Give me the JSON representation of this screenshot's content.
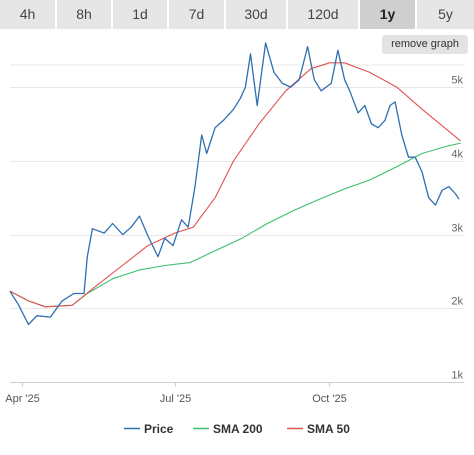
{
  "tabs": [
    {
      "label": "4h",
      "active": false
    },
    {
      "label": "8h",
      "active": false
    },
    {
      "label": "1d",
      "active": false
    },
    {
      "label": "7d",
      "active": false
    },
    {
      "label": "30d",
      "active": false
    },
    {
      "label": "120d",
      "active": false
    },
    {
      "label": "1y",
      "active": true
    },
    {
      "label": "5y",
      "active": false
    }
  ],
  "toolbar": {
    "remove_graph_label": "remove graph"
  },
  "chart_data": {
    "type": "line",
    "title": "",
    "xlabel": "",
    "ylabel": "",
    "x_ticks": [
      "Apr '25",
      "Jul '25",
      "Oct '25"
    ],
    "y_ticks": [
      "1k",
      "2k",
      "3k",
      "4k",
      "5k"
    ],
    "y_tick_values": [
      1000,
      2000,
      3000,
      4000,
      5000
    ],
    "ylim": [
      1000,
      5300
    ],
    "xlim": [
      "2025-03-25",
      "2025-12-20"
    ],
    "grid": true,
    "legend_position": "bottom",
    "series": [
      {
        "name": "Price",
        "color": "#2f6fb0",
        "points": [
          [
            "2025-03-25",
            2230
          ],
          [
            "2025-03-30",
            2050
          ],
          [
            "2025-04-05",
            1780
          ],
          [
            "2025-04-10",
            1900
          ],
          [
            "2025-04-18",
            1880
          ],
          [
            "2025-04-25",
            2100
          ],
          [
            "2025-05-02",
            2200
          ],
          [
            "2025-05-08",
            2200
          ],
          [
            "2025-05-10",
            2700
          ],
          [
            "2025-05-13",
            3080
          ],
          [
            "2025-05-20",
            3020
          ],
          [
            "2025-05-25",
            3150
          ],
          [
            "2025-05-31",
            3000
          ],
          [
            "2025-06-05",
            3100
          ],
          [
            "2025-06-10",
            3250
          ],
          [
            "2025-06-15",
            2980
          ],
          [
            "2025-06-21",
            2700
          ],
          [
            "2025-06-25",
            2950
          ],
          [
            "2025-06-30",
            2850
          ],
          [
            "2025-07-05",
            3200
          ],
          [
            "2025-07-09",
            3100
          ],
          [
            "2025-07-13",
            3650
          ],
          [
            "2025-07-17",
            4350
          ],
          [
            "2025-07-20",
            4100
          ],
          [
            "2025-07-25",
            4450
          ],
          [
            "2025-07-30",
            4550
          ],
          [
            "2025-08-05",
            4700
          ],
          [
            "2025-08-09",
            4850
          ],
          [
            "2025-08-12",
            5000
          ],
          [
            "2025-08-15",
            5450
          ],
          [
            "2025-08-19",
            4750
          ],
          [
            "2025-08-24",
            5600
          ],
          [
            "2025-08-29",
            5200
          ],
          [
            "2025-09-03",
            5050
          ],
          [
            "2025-09-08",
            5000
          ],
          [
            "2025-09-13",
            5100
          ],
          [
            "2025-09-18",
            5550
          ],
          [
            "2025-09-22",
            5100
          ],
          [
            "2025-09-26",
            4950
          ],
          [
            "2025-10-02",
            5050
          ],
          [
            "2025-10-06",
            5500
          ],
          [
            "2025-10-10",
            5100
          ],
          [
            "2025-10-13",
            4950
          ],
          [
            "2025-10-18",
            4650
          ],
          [
            "2025-10-22",
            4750
          ],
          [
            "2025-10-26",
            4500
          ],
          [
            "2025-10-30",
            4450
          ],
          [
            "2025-11-03",
            4550
          ],
          [
            "2025-11-06",
            4750
          ],
          [
            "2025-11-09",
            4800
          ],
          [
            "2025-11-13",
            4350
          ],
          [
            "2025-11-17",
            4050
          ],
          [
            "2025-11-21",
            4050
          ],
          [
            "2025-11-25",
            3850
          ],
          [
            "2025-11-29",
            3500
          ],
          [
            "2025-12-03",
            3400
          ],
          [
            "2025-12-07",
            3600
          ],
          [
            "2025-12-11",
            3650
          ],
          [
            "2025-12-15",
            3550
          ],
          [
            "2025-12-17",
            3480
          ]
        ]
      },
      {
        "name": "SMA 200",
        "color": "#3fbf6e",
        "points": [
          [
            "2025-03-25",
            2230
          ],
          [
            "2025-04-05",
            2100
          ],
          [
            "2025-04-15",
            2020
          ],
          [
            "2025-05-01",
            2040
          ],
          [
            "2025-05-10",
            2200
          ],
          [
            "2025-05-25",
            2400
          ],
          [
            "2025-06-10",
            2520
          ],
          [
            "2025-06-25",
            2580
          ],
          [
            "2025-07-10",
            2620
          ],
          [
            "2025-07-25",
            2780
          ],
          [
            "2025-08-10",
            2950
          ],
          [
            "2025-08-25",
            3150
          ],
          [
            "2025-09-10",
            3330
          ],
          [
            "2025-09-25",
            3480
          ],
          [
            "2025-10-10",
            3620
          ],
          [
            "2025-10-25",
            3740
          ],
          [
            "2025-11-10",
            3920
          ],
          [
            "2025-11-25",
            4100
          ],
          [
            "2025-12-10",
            4200
          ],
          [
            "2025-12-18",
            4240
          ]
        ]
      },
      {
        "name": "SMA 50",
        "color": "#e0534f",
        "points": [
          [
            "2025-03-25",
            2230
          ],
          [
            "2025-04-05",
            2100
          ],
          [
            "2025-04-15",
            2020
          ],
          [
            "2025-05-01",
            2040
          ],
          [
            "2025-05-15",
            2300
          ],
          [
            "2025-06-01",
            2600
          ],
          [
            "2025-06-15",
            2850
          ],
          [
            "2025-07-01",
            3020
          ],
          [
            "2025-07-12",
            3100
          ],
          [
            "2025-07-25",
            3500
          ],
          [
            "2025-08-05",
            4000
          ],
          [
            "2025-08-20",
            4500
          ],
          [
            "2025-09-05",
            4950
          ],
          [
            "2025-09-20",
            5250
          ],
          [
            "2025-10-01",
            5330
          ],
          [
            "2025-10-10",
            5330
          ],
          [
            "2025-10-25",
            5200
          ],
          [
            "2025-11-10",
            5000
          ],
          [
            "2025-11-25",
            4700
          ],
          [
            "2025-12-18",
            4270
          ]
        ]
      }
    ]
  }
}
